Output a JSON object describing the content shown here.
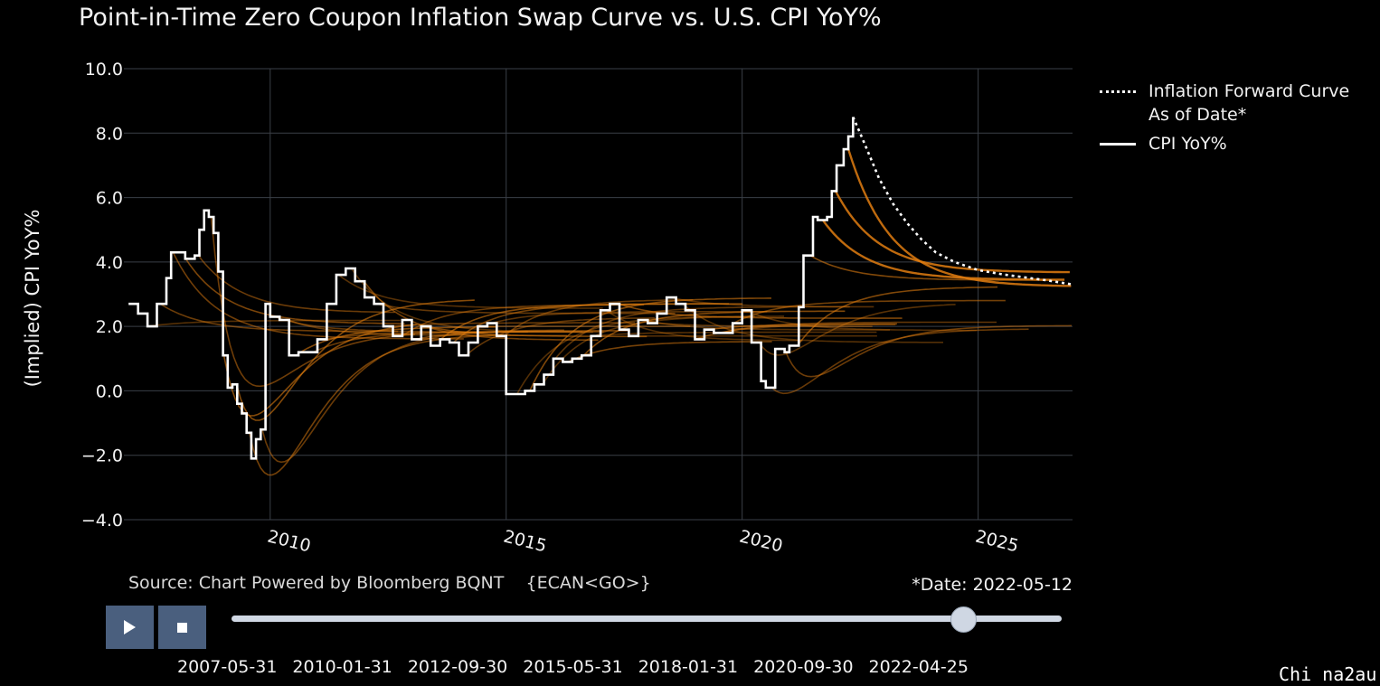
{
  "chart_data": {
    "type": "line",
    "title": "Point-in-Time Zero Coupon Inflation Swap Curve vs. U.S. CPI YoY%",
    "xlabel": "",
    "ylabel": "(Implied) CPI YoY%",
    "xlim": [
      2006.9,
      2027.0
    ],
    "ylim": [
      -4.0,
      10.0
    ],
    "x_ticks": [
      2010,
      2015,
      2020,
      2025
    ],
    "x_tick_labels": [
      "2010",
      "2015",
      "2020",
      "2025"
    ],
    "y_ticks": [
      -4,
      -2,
      0,
      2,
      4,
      6,
      8,
      10
    ],
    "y_tick_labels": [
      "−4.0",
      "−2.0",
      "0.0",
      "2.0",
      "4.0",
      "6.0",
      "8.0",
      "10.0"
    ],
    "grid": true,
    "legend_position": "right",
    "series": [
      {
        "name": "CPI YoY%",
        "color": "#ffffff",
        "style": "step",
        "x": [
          2007.0,
          2007.2,
          2007.4,
          2007.6,
          2007.8,
          2007.9,
          2008.0,
          2008.2,
          2008.4,
          2008.5,
          2008.6,
          2008.7,
          2008.8,
          2008.9,
          2009.0,
          2009.1,
          2009.2,
          2009.3,
          2009.4,
          2009.5,
          2009.6,
          2009.7,
          2009.8,
          2009.9,
          2010.0,
          2010.2,
          2010.4,
          2010.6,
          2010.8,
          2011.0,
          2011.2,
          2011.4,
          2011.6,
          2011.8,
          2012.0,
          2012.2,
          2012.4,
          2012.6,
          2012.8,
          2013.0,
          2013.2,
          2013.4,
          2013.6,
          2013.8,
          2014.0,
          2014.2,
          2014.4,
          2014.6,
          2014.8,
          2015.0,
          2015.2,
          2015.4,
          2015.6,
          2015.8,
          2016.0,
          2016.2,
          2016.4,
          2016.6,
          2016.8,
          2017.0,
          2017.2,
          2017.4,
          2017.6,
          2017.8,
          2018.0,
          2018.2,
          2018.4,
          2018.6,
          2018.8,
          2019.0,
          2019.2,
          2019.4,
          2019.6,
          2019.8,
          2020.0,
          2020.2,
          2020.4,
          2020.5,
          2020.7,
          2020.9,
          2021.0,
          2021.2,
          2021.3,
          2021.5,
          2021.6,
          2021.8,
          2021.9,
          2022.0,
          2022.15,
          2022.25,
          2022.35
        ],
        "values": [
          2.7,
          2.4,
          2.0,
          2.7,
          3.5,
          4.3,
          4.3,
          4.1,
          4.2,
          5.0,
          5.6,
          5.4,
          4.9,
          3.7,
          1.1,
          0.1,
          0.2,
          -0.4,
          -0.7,
          -1.3,
          -2.1,
          -1.5,
          -1.2,
          2.7,
          2.3,
          2.2,
          1.1,
          1.2,
          1.2,
          1.6,
          2.7,
          3.6,
          3.8,
          3.4,
          2.9,
          2.7,
          2.0,
          1.7,
          2.2,
          1.6,
          2.0,
          1.4,
          1.6,
          1.5,
          1.1,
          1.5,
          2.0,
          2.1,
          1.7,
          -0.1,
          -0.1,
          0.0,
          0.2,
          0.5,
          1.0,
          0.9,
          1.0,
          1.1,
          1.7,
          2.5,
          2.7,
          1.9,
          1.7,
          2.2,
          2.1,
          2.4,
          2.9,
          2.7,
          2.5,
          1.6,
          1.9,
          1.8,
          1.8,
          2.1,
          2.5,
          1.5,
          0.3,
          0.1,
          1.3,
          1.2,
          1.4,
          2.6,
          4.2,
          5.4,
          5.3,
          5.4,
          6.2,
          7.0,
          7.5,
          7.9,
          8.5
        ]
      },
      {
        "name": "Inflation Forward Curve As of Date*",
        "color": "#ffffff",
        "style": "dotted",
        "x": [
          2022.35,
          2022.5,
          2022.7,
          2022.9,
          2023.2,
          2023.5,
          2023.8,
          2024.1,
          2024.5,
          2025.0,
          2025.5,
          2026.0,
          2026.5,
          2027.0
        ],
        "values": [
          8.5,
          8.0,
          7.3,
          6.6,
          5.8,
          5.2,
          4.7,
          4.3,
          4.0,
          3.75,
          3.62,
          3.52,
          3.42,
          3.3
        ]
      }
    ],
    "historical_forward_curves_color": "#e07d10",
    "slider": {
      "labels": [
        "2007-05-31",
        "2010-01-31",
        "2012-09-30",
        "2015-05-31",
        "2018-01-31",
        "2020-09-30",
        "2022-04-25"
      ],
      "position": 0.88
    }
  },
  "legend": {
    "item1_line1": "Inflation Forward Curve",
    "item1_line2": "As of Date*",
    "item2": "CPI YoY%"
  },
  "footer": {
    "source": "Source: Chart Powered by Bloomberg BQNT    {ECAN<GO>}",
    "date_label": "*Date: 2022-05-12"
  },
  "controls": {
    "play_icon": "play-icon",
    "stop_icon": "stop-icon"
  },
  "watermark": "Chi na2au"
}
